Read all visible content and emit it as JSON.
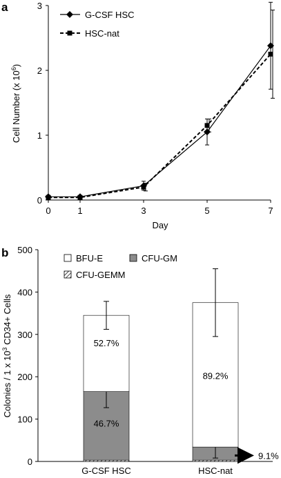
{
  "chart_data": [
    {
      "panel": "a",
      "type": "line",
      "ylabel": "Cell Number (x 10",
      "ylabel_sup": "6",
      "ylabel_close": ")",
      "xlabel": "Day",
      "x": [
        0,
        1,
        3,
        5,
        7
      ],
      "xlim": [
        0,
        7
      ],
      "ylim": [
        0,
        3
      ],
      "xticks": [
        0,
        1,
        3,
        5,
        7
      ],
      "yticks": [
        0,
        1,
        2,
        3
      ],
      "legend_position": "top-left",
      "series": [
        {
          "name": "G-CSF HSC",
          "marker": "diamond",
          "line": "solid",
          "values": [
            0.05,
            0.05,
            0.22,
            1.05,
            2.38
          ],
          "errors": [
            0.02,
            0.02,
            0.07,
            0.2,
            0.67
          ]
        },
        {
          "name": "HSC-nat",
          "marker": "square",
          "line": "dashed",
          "values": [
            0.04,
            0.04,
            0.2,
            1.15,
            2.25
          ],
          "errors": [
            0.02,
            0.02,
            0.06,
            0.1,
            0.68
          ]
        }
      ]
    },
    {
      "panel": "b",
      "type": "bar",
      "stacked": true,
      "ylabel": "Colonies / 1 x 10",
      "ylabel_sup": "3",
      "ylabel_close": " CD34+ Cells",
      "categories": [
        "G-CSF HSC",
        "HSC-nat"
      ],
      "ylim": [
        0,
        500
      ],
      "yticks": [
        0,
        100,
        200,
        300,
        400,
        500
      ],
      "legend_position": "top-left",
      "series": [
        {
          "name": "CFU-GEMM",
          "color": "#ffffff",
          "pattern": "hatch",
          "values": [
            3,
            3
          ],
          "errors": [
            0,
            0
          ]
        },
        {
          "name": "CFU-GM",
          "color": "#8c8c8c",
          "values": [
            162,
            31
          ],
          "errors": [
            38,
            26
          ]
        },
        {
          "name": "BFU-E",
          "color": "#ffffff",
          "values": [
            180,
            341
          ],
          "errors": [
            33,
            80
          ]
        }
      ],
      "legend_order": [
        "BFU-E",
        "CFU-GM",
        "CFU-GEMM"
      ],
      "annotations": {
        "bfu_pct": [
          "52.7%",
          "89.2%"
        ],
        "gm_pct": [
          "46.7%",
          ""
        ],
        "arrow_label": "9.1%"
      }
    }
  ]
}
